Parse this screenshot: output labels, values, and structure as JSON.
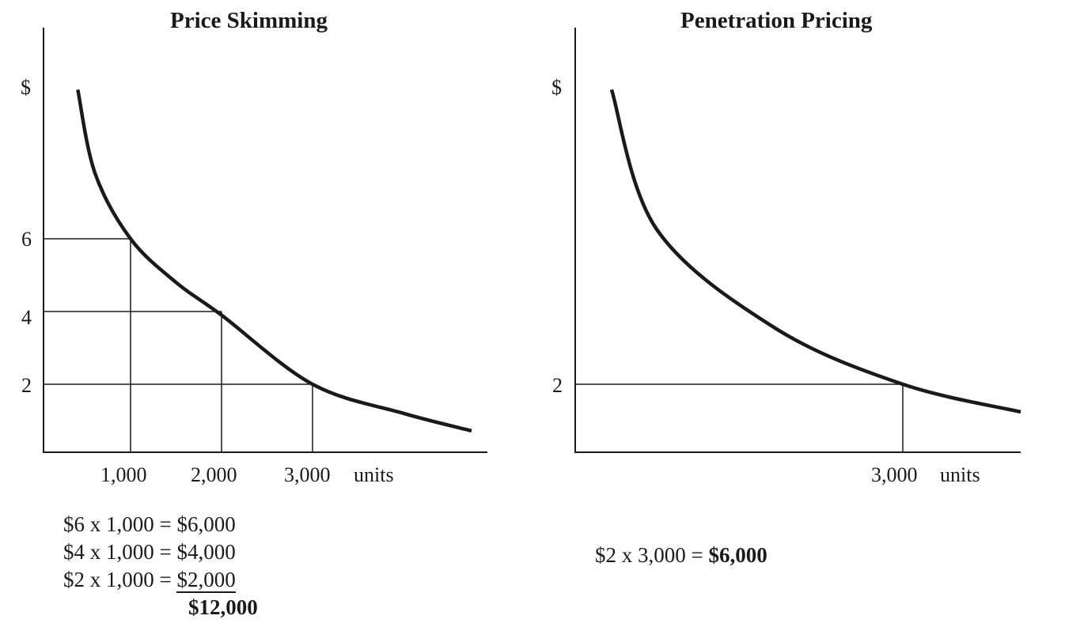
{
  "chart_data": [
    {
      "type": "line",
      "title": "Price Skimming",
      "ylabel": "$",
      "xlabel": "units",
      "yticks": [
        "6",
        "4",
        "2"
      ],
      "xticks": [
        "1,000",
        "2,000",
        "3,000"
      ],
      "curve": [
        [
          420,
          10.1
        ],
        [
          610,
          7.8
        ],
        [
          1000,
          6
        ],
        [
          1500,
          4.8
        ],
        [
          2000,
          3.9
        ],
        [
          3000,
          2
        ],
        [
          4000,
          1.2
        ],
        [
          4748,
          0.72
        ]
      ],
      "guides": [
        [
          1000,
          6
        ],
        [
          2000,
          4
        ],
        [
          3000,
          2
        ]
      ],
      "calculation": {
        "lines": [
          "$6 x 1,000 = ",
          "$4 x 1,000 = ",
          "$2 x 1,000 = "
        ],
        "results": [
          "$6,000",
          "$4,000",
          "$2,000"
        ],
        "total": "$12,000"
      }
    },
    {
      "type": "line",
      "title": "Penetration Pricing",
      "ylabel": "$",
      "xlabel": "units",
      "yticks": [
        "2"
      ],
      "xticks": [
        "3,000"
      ],
      "curve": [
        [
          333,
          10.1
        ],
        [
          746,
          6.26
        ],
        [
          1833,
          3.54
        ],
        [
          3000,
          2
        ],
        [
          4080,
          1.24
        ]
      ],
      "guides": [
        [
          3000,
          2
        ]
      ],
      "calculation": {
        "line": "$2 x 3,000 = ",
        "total": "$6,000"
      }
    }
  ],
  "colors": {
    "ink": "#1a1a1a"
  }
}
